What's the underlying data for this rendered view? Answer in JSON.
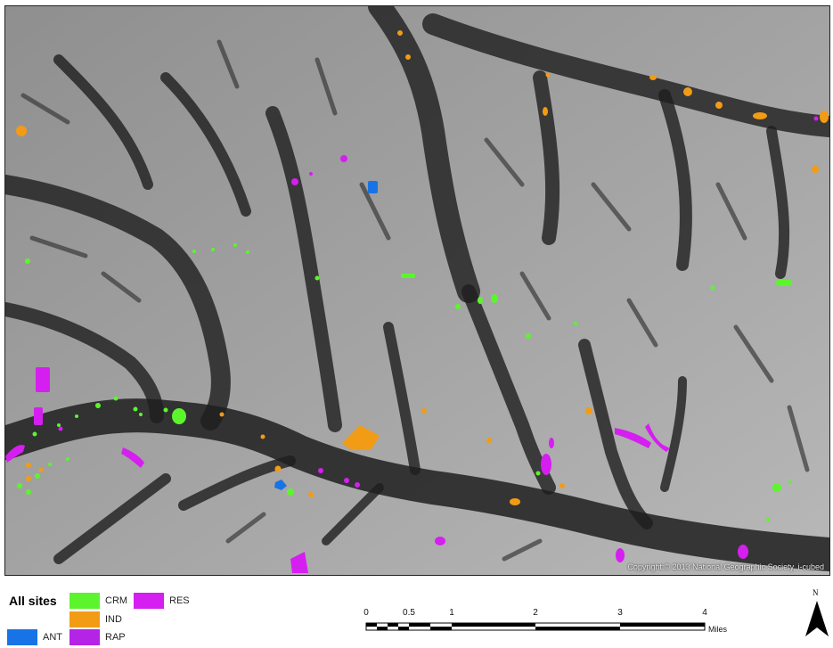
{
  "map": {
    "copyright": "Copyright:© 2013 National Geographic Society, i-cubed"
  },
  "legend": {
    "title": "All sites",
    "items": [
      {
        "key": "crm",
        "label": "CRM",
        "color": "#5cf52d"
      },
      {
        "key": "res",
        "label": "RES",
        "color": "#d51ff0"
      },
      {
        "key": "ind",
        "label": "IND",
        "color": "#f29b15"
      },
      {
        "key": "ant",
        "label": "ANT",
        "color": "#1874e6"
      },
      {
        "key": "rap",
        "label": "RAP",
        "color": "#b523e6"
      }
    ]
  },
  "scalebar": {
    "ticks": [
      "0",
      "0.5",
      "1",
      "2",
      "3",
      "4"
    ],
    "units": "Miles"
  },
  "north_arrow": {
    "label": "N",
    "icon": "north-arrow-icon"
  }
}
